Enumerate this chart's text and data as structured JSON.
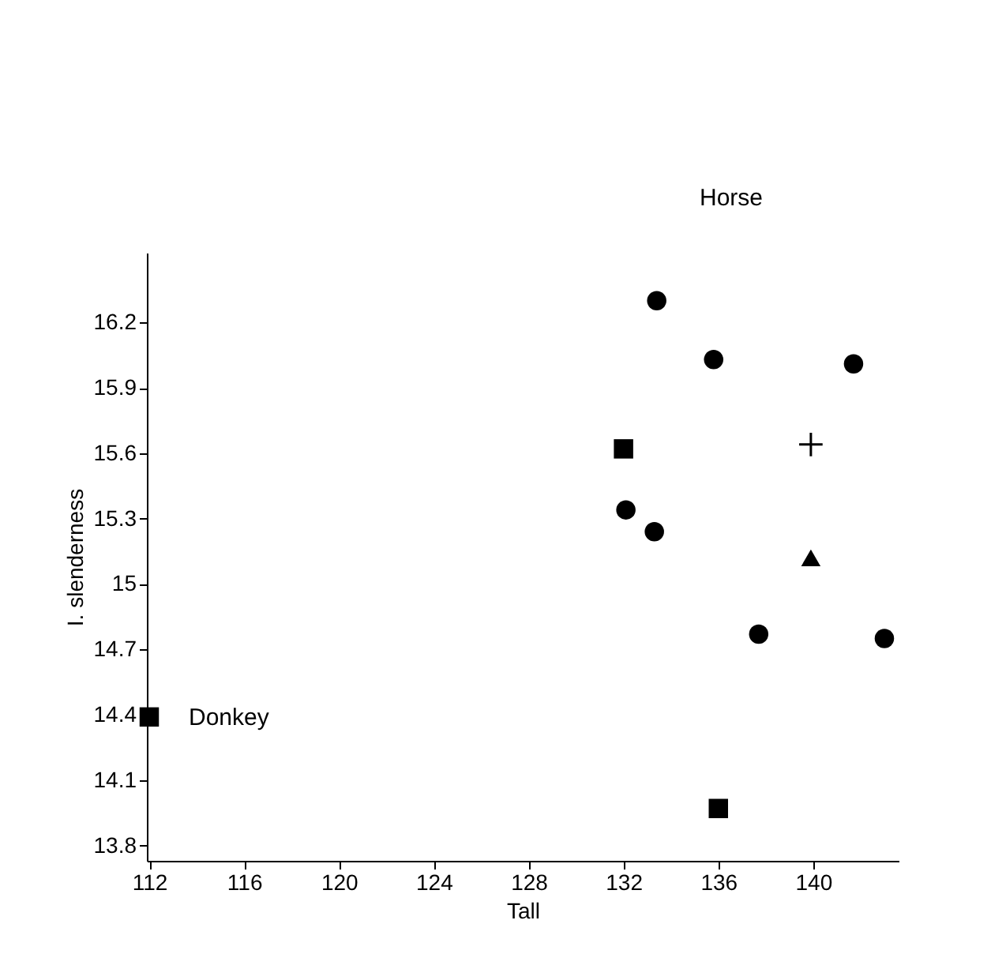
{
  "chart_data": {
    "type": "scatter",
    "xlabel": "Tall",
    "ylabel": "I. slenderness",
    "xlim": [
      111.9,
      143.6
    ],
    "ylim": [
      13.73,
      16.52
    ],
    "xticks": [
      112,
      116,
      120,
      124,
      128,
      132,
      136,
      140
    ],
    "yticks": [
      13.8,
      14.1,
      14.4,
      14.7,
      15,
      15.3,
      15.6,
      15.9,
      16.2
    ],
    "grid": false,
    "series": [
      {
        "color": "#000000",
        "marker": "circle",
        "x": [
          133.4,
          135.8,
          141.7,
          132.1,
          133.3,
          137.7,
          143.0
        ],
        "values": [
          16.3,
          16.03,
          16.01,
          15.34,
          15.24,
          14.77,
          14.75
        ]
      },
      {
        "color": "#000000",
        "marker": "square",
        "x": [
          132.0,
          112.0,
          136.0
        ],
        "values": [
          15.62,
          14.39,
          13.97
        ]
      },
      {
        "color": "#000000",
        "marker": "cross",
        "x": [
          139.9
        ],
        "values": [
          15.64
        ]
      },
      {
        "color": "#000000",
        "marker": "triangle",
        "x": [
          139.9
        ],
        "values": [
          15.12
        ]
      }
    ],
    "annotations": [
      "Horse",
      {
        "text": "Donkey",
        "x": 112.0,
        "y": 14.39
      }
    ]
  }
}
